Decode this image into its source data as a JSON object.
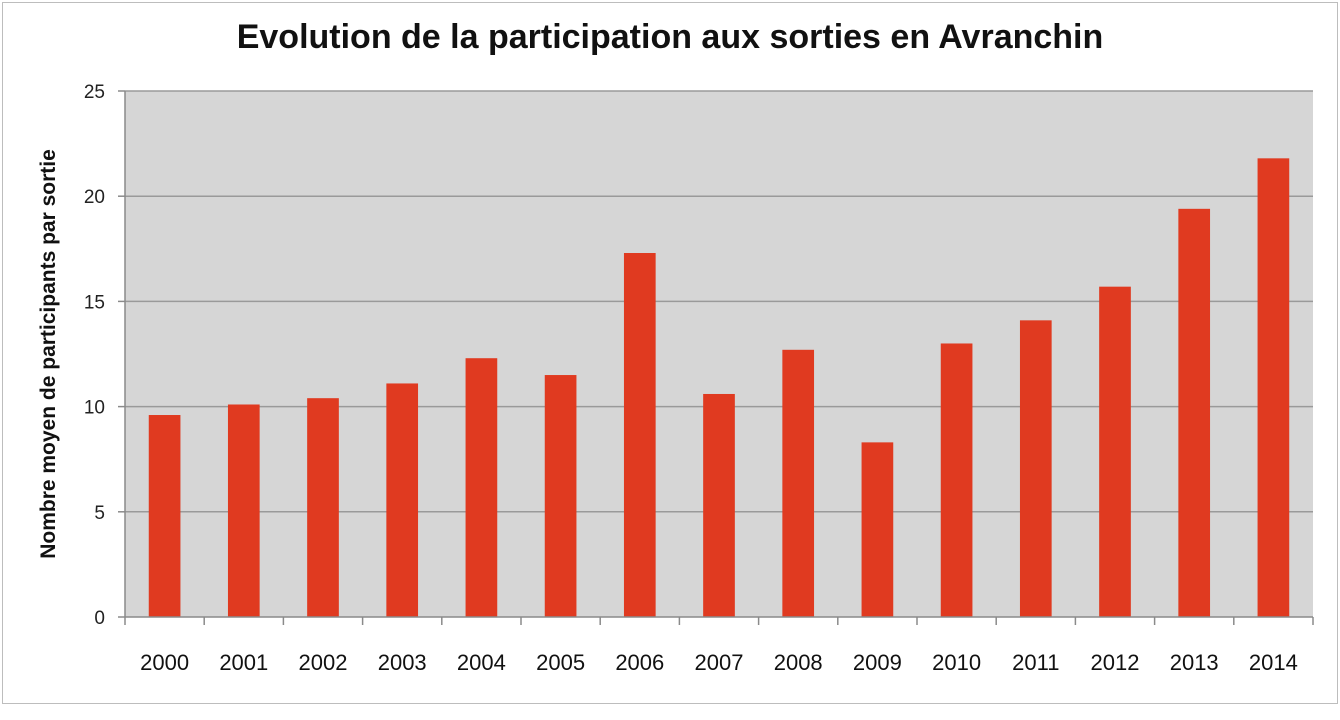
{
  "chart_data": {
    "type": "bar",
    "title": "Evolution de la participation aux sorties en Avranchin",
    "xlabel": "",
    "ylabel": "Nombre moyen de participants par sortie",
    "categories": [
      "2000",
      "2001",
      "2002",
      "2003",
      "2004",
      "2005",
      "2006",
      "2007",
      "2008",
      "2009",
      "2010",
      "2011",
      "2012",
      "2013",
      "2014"
    ],
    "values": [
      9.6,
      10.1,
      10.4,
      11.1,
      12.3,
      11.5,
      17.3,
      10.6,
      12.7,
      8.3,
      13.0,
      14.1,
      15.7,
      19.4,
      21.8
    ],
    "ylim": [
      0,
      25
    ],
    "yticks": [
      0,
      5,
      10,
      15,
      20,
      25
    ],
    "grid": true,
    "legend": "none",
    "colors": {
      "bar": "#e03a20",
      "plot_background": "#d6d6d6",
      "gridline": "#9a9a9a"
    }
  }
}
